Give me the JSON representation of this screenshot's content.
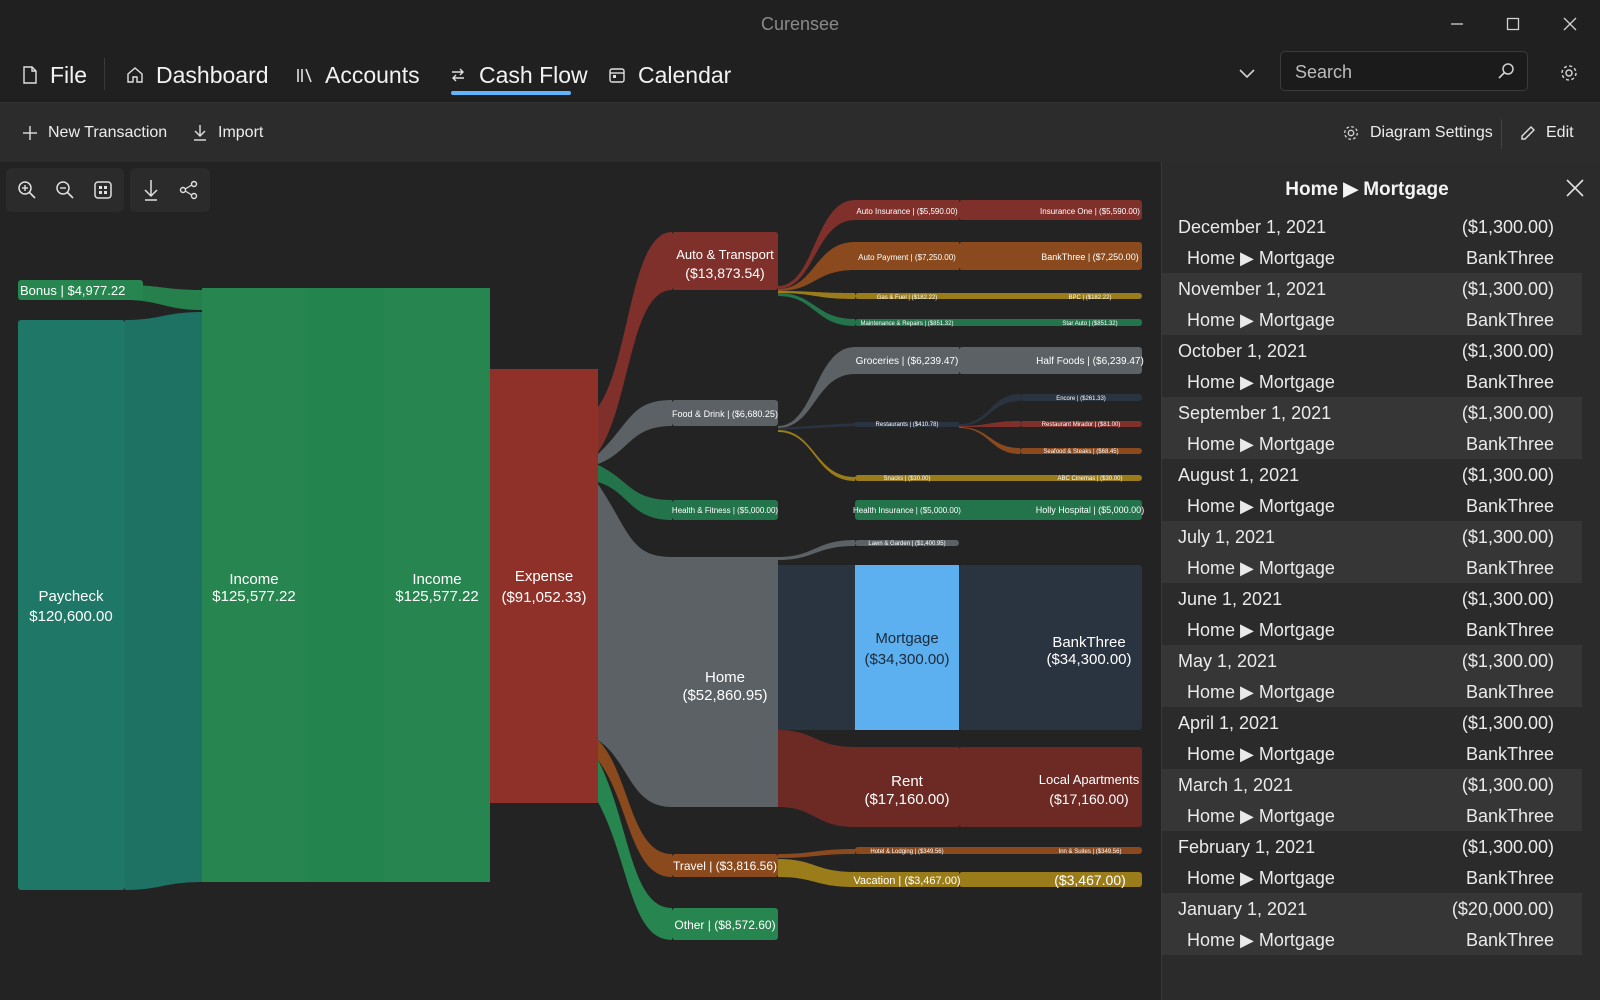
{
  "app": {
    "title": "Curensee"
  },
  "nav": {
    "file": "File",
    "dashboard": "Dashboard",
    "accounts": "Accounts",
    "cash_flow": "Cash Flow",
    "calendar": "Calendar",
    "active_tab": "Cash Flow"
  },
  "search": {
    "placeholder": "Search"
  },
  "toolbar": {
    "new_transaction": "New Transaction",
    "import": "Import",
    "diagram_settings": "Diagram Settings",
    "edit": "Edit"
  },
  "sankey": {
    "bonus": "Bonus | $4,977.22",
    "paycheck_name": "Paycheck",
    "paycheck_amount": "$120,600.00",
    "income1_name": "Income",
    "income1_amount": "$125,577.22",
    "income2_name": "Income",
    "income2_amount": "$125,577.22",
    "expense_name": "Expense",
    "expense_amount": "($91,052.33)",
    "auto_name": "Auto & Transport",
    "auto_amount": "($13,873.54)",
    "auto_insurance": "Auto Insurance | ($5,590.00)",
    "insurance_one": "Insurance One | ($5,590.00)",
    "auto_payment": "Auto Payment | ($7,250.00)",
    "bankthree_auto": "BankThree | ($7,250.00)",
    "gas_fuel": "Gas & Fuel | ($182.22)",
    "bpc": "BPC | ($182.22)",
    "maintenance": "Maintenance & Repairs | ($851.32)",
    "star_auto": "Star Auto | ($851.32)",
    "food": "Food & Drink | ($6,680.25)",
    "groceries": "Groceries | ($6,239.47)",
    "half_foods": "Half Foods | ($6,239.47)",
    "restaurants": "Restaurants | ($410.78)",
    "encore": "Encore | ($261.33)",
    "restaurant_mirador": "Restaurant Mirador | ($81.00)",
    "seafood": "Seafood & Steaks | ($68.45)",
    "snacks": "Snacks | ($30.00)",
    "abc_cinemas": "ABC Cinemas | ($30.00)",
    "health": "Health & Fitness | ($5,000.00)",
    "health_insurance": "Health Insurance | ($5,000.00)",
    "holly_hospital": "Holly Hospital | ($5,000.00)",
    "lawn": "Lawn & Garden | ($1,400.95)",
    "home_name": "Home",
    "home_amount": "($52,860.95)",
    "mortgage_name": "Mortgage",
    "mortgage_amount": "($34,300.00)",
    "bankthree_home_name": "BankThree",
    "bankthree_home_amount": "($34,300.00)",
    "rent_name": "Rent",
    "rent_amount": "($17,160.00)",
    "local_apts_name": "Local Apartments",
    "local_apts_amount": "($17,160.00)",
    "travel": "Travel | ($3,816.56)",
    "hotel": "Hotel & Lodging | ($349.56)",
    "inn_suites": "Inn & Suites | ($349.56)",
    "vacation": "Vacation | ($3,467.00)",
    "vacation_dest": "($3,467.00)",
    "other": "Other | ($8,572.60)"
  },
  "panel": {
    "title": "Home ▶ Mortgage",
    "rows": [
      {
        "date": "December 1, 2021",
        "amount": "($1,300.00)",
        "category": "Home ▶ Mortgage",
        "account": "BankThree"
      },
      {
        "date": "November 1, 2021",
        "amount": "($1,300.00)",
        "category": "Home ▶ Mortgage",
        "account": "BankThree"
      },
      {
        "date": "October 1, 2021",
        "amount": "($1,300.00)",
        "category": "Home ▶ Mortgage",
        "account": "BankThree"
      },
      {
        "date": "September 1, 2021",
        "amount": "($1,300.00)",
        "category": "Home ▶ Mortgage",
        "account": "BankThree"
      },
      {
        "date": "August 1, 2021",
        "amount": "($1,300.00)",
        "category": "Home ▶ Mortgage",
        "account": "BankThree"
      },
      {
        "date": "July 1, 2021",
        "amount": "($1,300.00)",
        "category": "Home ▶ Mortgage",
        "account": "BankThree"
      },
      {
        "date": "June 1, 2021",
        "amount": "($1,300.00)",
        "category": "Home ▶ Mortgage",
        "account": "BankThree"
      },
      {
        "date": "May 1, 2021",
        "amount": "($1,300.00)",
        "category": "Home ▶ Mortgage",
        "account": "BankThree"
      },
      {
        "date": "April 1, 2021",
        "amount": "($1,300.00)",
        "category": "Home ▶ Mortgage",
        "account": "BankThree"
      },
      {
        "date": "March 1, 2021",
        "amount": "($1,300.00)",
        "category": "Home ▶ Mortgage",
        "account": "BankThree"
      },
      {
        "date": "February 1, 2021",
        "amount": "($1,300.00)",
        "category": "Home ▶ Mortgage",
        "account": "BankThree"
      },
      {
        "date": "January 1, 2021",
        "amount": "($20,000.00)",
        "category": "Home ▶ Mortgage",
        "account": "BankThree"
      }
    ]
  },
  "colors": {
    "accent": "#5fb6ff",
    "income": "#27864f",
    "paycheck": "#1f7867",
    "expense": "#8f3128",
    "auto": "#80302a",
    "home": "#5e6466",
    "mortgage_selected": "#5cb0ef",
    "gold": "#9a7d1a",
    "orange": "#8a4a1e",
    "navy": "#2a3340"
  }
}
